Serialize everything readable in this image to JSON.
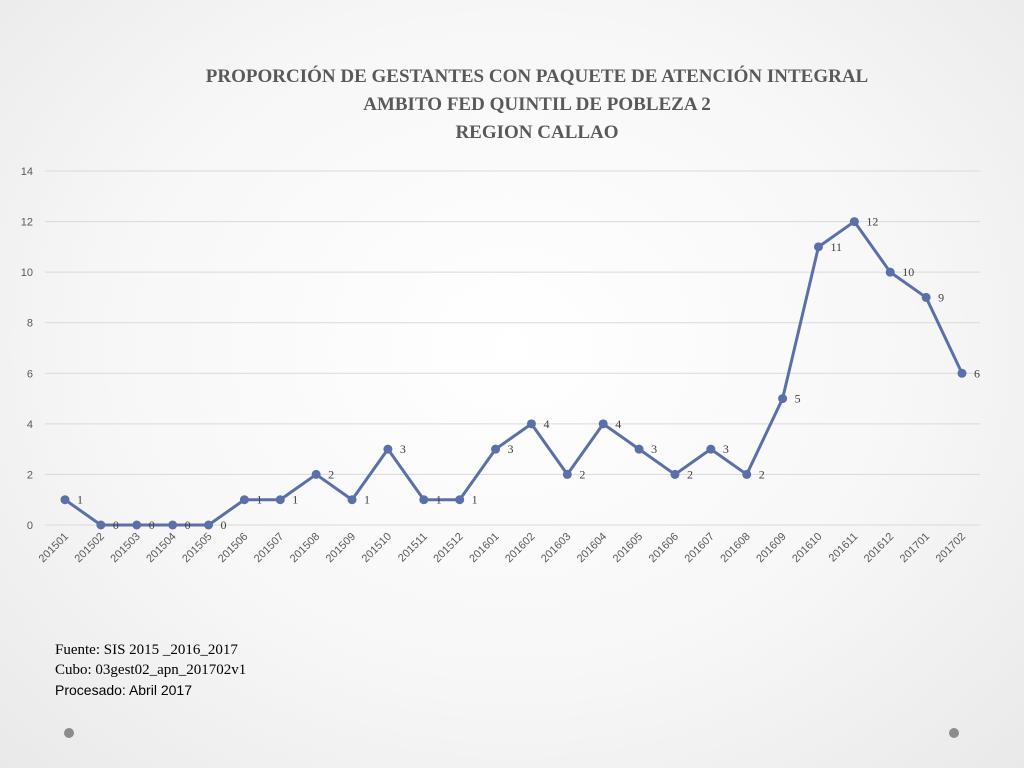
{
  "chart_data": {
    "type": "line",
    "title": [
      "PROPORCIÓN DE GESTANTES CON PAQUETE DE ATENCIÓN INTEGRAL",
      "AMBITO FED QUINTIL DE POBLEZA 2",
      "REGION CALLAO"
    ],
    "xlabel": "",
    "ylabel": "",
    "ylim": [
      0,
      14
    ],
    "yticks": [
      "0",
      "2",
      "4",
      "6",
      "8",
      "10",
      "12",
      "14"
    ],
    "grid": true,
    "categories": [
      "201501",
      "201502",
      "201503",
      "201504",
      "201505",
      "201506",
      "201507",
      "201508",
      "201509",
      "201510",
      "201511",
      "201512",
      "201601",
      "201602",
      "201603",
      "201604",
      "201605",
      "201606",
      "201607",
      "201608",
      "201609",
      "201610",
      "201611",
      "201612",
      "201701",
      "201702"
    ],
    "series": [
      {
        "name": "Gestantes",
        "color": "#5b6fa9",
        "values": [
          1,
          0,
          0,
          0,
          0,
          1,
          1,
          2,
          1,
          3,
          1,
          1,
          3,
          4,
          2,
          4,
          3,
          2,
          3,
          2,
          5,
          11,
          12,
          10,
          9,
          6
        ]
      }
    ]
  },
  "notes": {
    "source": "Fuente: SIS 2015 _2016_2017",
    "cube": "Cubo:  03gest02_apn_201702v1",
    "processed": "Procesado: Abril 2017"
  }
}
